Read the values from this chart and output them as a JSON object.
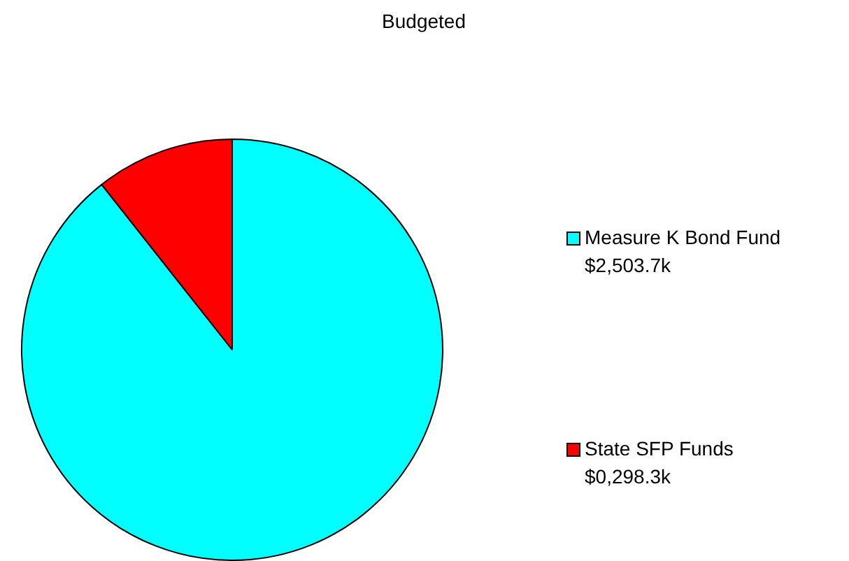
{
  "chart_data": {
    "type": "pie",
    "title": "Budgeted",
    "categories": [
      "Measure K Bond Fund",
      "State SFP Funds"
    ],
    "values": [
      2503.7,
      298.3
    ],
    "colors": [
      "#00ffff",
      "#ff0000"
    ],
    "value_labels": [
      "$2,503.7k",
      "$0,298.3k"
    ],
    "legend": "right"
  }
}
